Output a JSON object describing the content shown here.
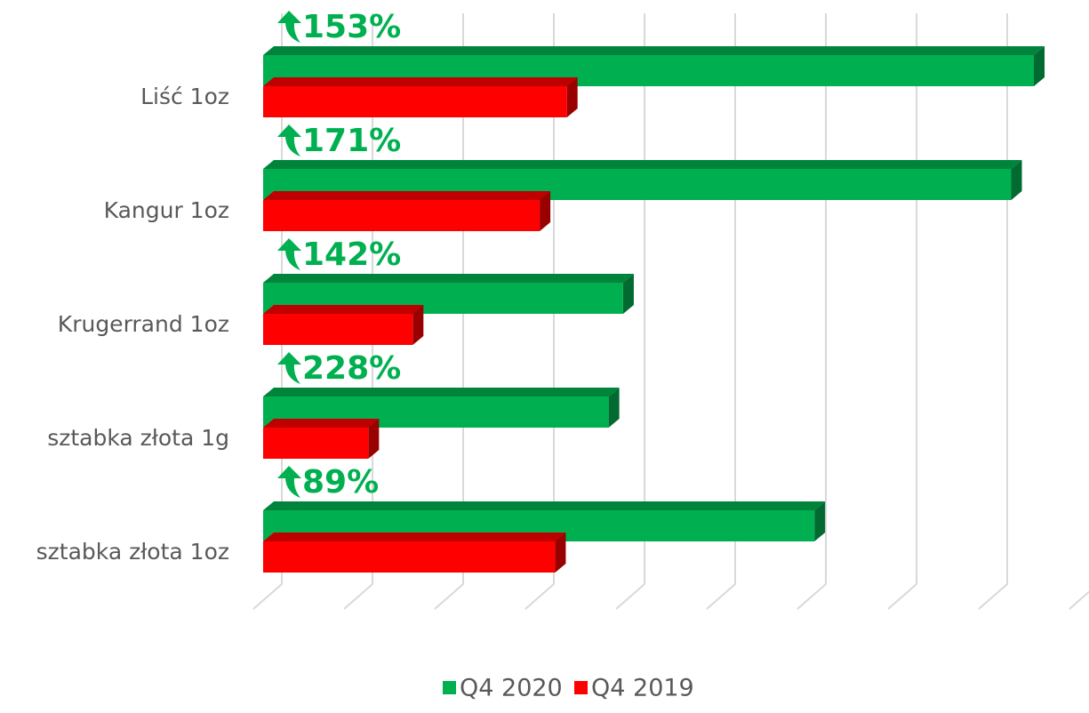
{
  "chart_data": {
    "type": "bar",
    "orientation": "horizontal",
    "categories": [
      "Liść 1oz",
      "Kangur 1oz",
      "Krugerrand 1oz",
      "sztabka złota 1g",
      "sztabka złota 1oz"
    ],
    "series": [
      {
        "name": "Q4 2020",
        "color": "#00b050",
        "values": [
          8.5,
          8.25,
          3.97,
          3.81,
          6.08
        ]
      },
      {
        "name": "Q4 2019",
        "color": "#ff0000",
        "values": [
          3.35,
          3.05,
          1.65,
          1.16,
          3.22
        ]
      }
    ],
    "annotations": [
      "153%",
      "171%",
      "142%",
      "228%",
      "89%"
    ],
    "xlim": [
      0,
      9
    ],
    "xticks": [
      0,
      1,
      2,
      3,
      4,
      5,
      6,
      7,
      8,
      9
    ],
    "grid": true
  }
}
